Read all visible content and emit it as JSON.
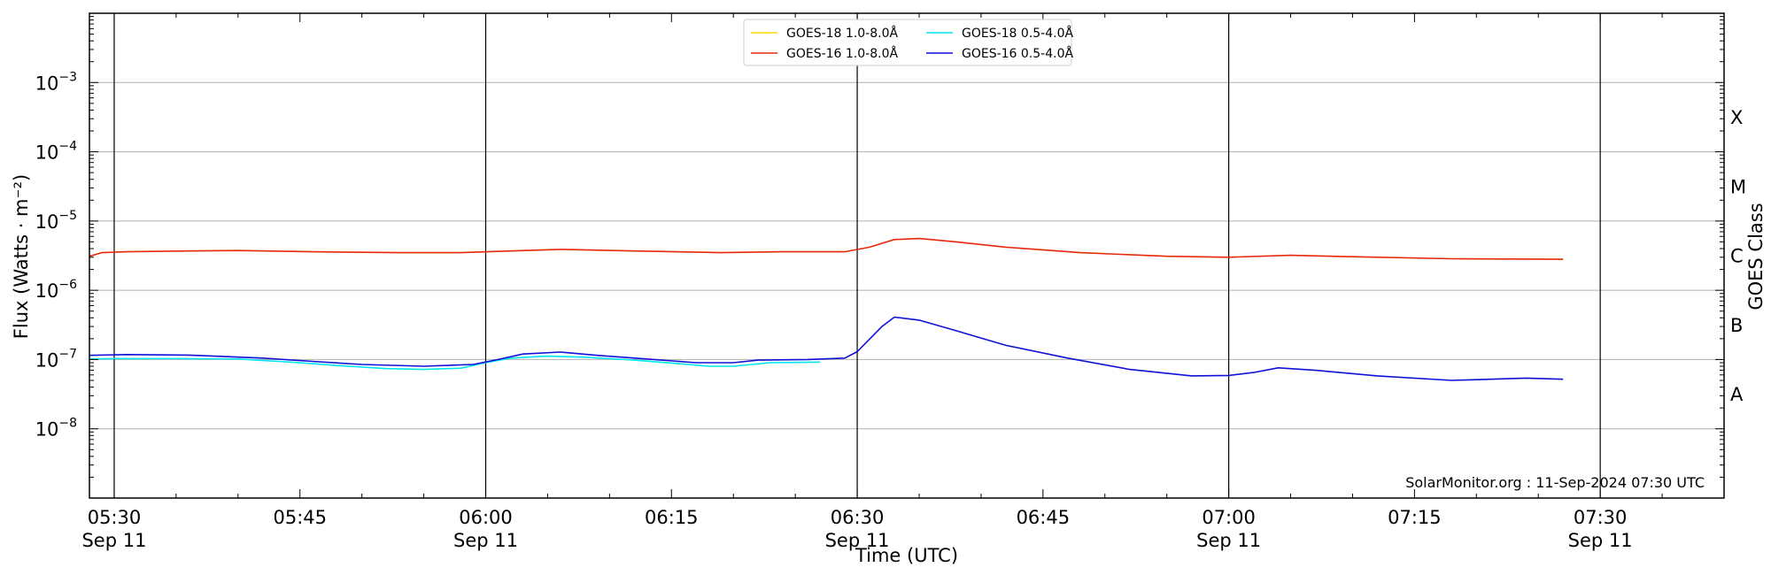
{
  "chart_data": {
    "type": "line",
    "xlabel": "Time (UTC)",
    "ylabel": "Flux (Watts · m⁻²)",
    "ylabel_right": "GOES Class",
    "y_scale": "log",
    "ylim": [
      1e-09,
      0.01
    ],
    "xlim": [
      "2024-09-11 05:28",
      "2024-09-11 07:40"
    ],
    "grid": "horizontal",
    "y_ticks": [
      {
        "exp": -8,
        "base": "10",
        "power": "−8"
      },
      {
        "exp": -7,
        "base": "10",
        "power": "−7"
      },
      {
        "exp": -6,
        "base": "10",
        "power": "−6"
      },
      {
        "exp": -5,
        "base": "10",
        "power": "−5"
      },
      {
        "exp": -4,
        "base": "10",
        "power": "−4"
      },
      {
        "exp": -3,
        "base": "10",
        "power": "−3"
      }
    ],
    "x_ticks": [
      {
        "time": "05:30",
        "label": "05:30",
        "date": "Sep 11"
      },
      {
        "time": "05:45",
        "label": "05:45",
        "date": ""
      },
      {
        "time": "06:00",
        "label": "06:00",
        "date": "Sep 11"
      },
      {
        "time": "06:15",
        "label": "06:15",
        "date": ""
      },
      {
        "time": "06:30",
        "label": "06:30",
        "date": "Sep 11"
      },
      {
        "time": "06:45",
        "label": "06:45",
        "date": ""
      },
      {
        "time": "07:00",
        "label": "07:00",
        "date": "Sep 11"
      },
      {
        "time": "07:15",
        "label": "07:15",
        "date": ""
      },
      {
        "time": "07:30",
        "label": "07:30",
        "date": "Sep 11"
      }
    ],
    "vertical_lines": [
      "05:30",
      "06:00",
      "06:30",
      "07:00",
      "07:30"
    ],
    "goes_classes": [
      {
        "label": "A",
        "flux": 3.2e-08
      },
      {
        "label": "B",
        "flux": 3.2e-07
      },
      {
        "label": "C",
        "flux": 3.2e-06
      },
      {
        "label": "M",
        "flux": 3.2e-05
      },
      {
        "label": "X",
        "flux": 0.00032
      }
    ],
    "legend_position": "top-center",
    "series": [
      {
        "name": "GOES-18 1.0-8.0Å",
        "color": "#ffd700",
        "points": []
      },
      {
        "name": "GOES-18 0.5-4.0Å",
        "color": "#00e5ee",
        "points": [
          [
            "05:28",
            1.02e-07
          ],
          [
            "05:30",
            1.03e-07
          ],
          [
            "05:35",
            1.03e-07
          ],
          [
            "05:40",
            1.02e-07
          ],
          [
            "05:45",
            9e-08
          ],
          [
            "05:48",
            8.2e-08
          ],
          [
            "05:52",
            7.4e-08
          ],
          [
            "05:55",
            7.2e-08
          ],
          [
            "05:58",
            7.5e-08
          ],
          [
            "06:00",
            9e-08
          ],
          [
            "06:02",
            1.05e-07
          ],
          [
            "06:05",
            1.12e-07
          ],
          [
            "06:08",
            1.08e-07
          ],
          [
            "06:12",
            9.8e-08
          ],
          [
            "06:16",
            8.6e-08
          ],
          [
            "06:18",
            8e-08
          ],
          [
            "06:20",
            8e-08
          ],
          [
            "06:23",
            9e-08
          ],
          [
            "06:27",
            9.2e-08
          ]
        ]
      },
      {
        "name": "GOES-16 1.0-8.0Å",
        "color": "#e8280c",
        "points": [
          [
            "05:28",
            3.1e-06
          ],
          [
            "05:29",
            3.5e-06
          ],
          [
            "05:31",
            3.6e-06
          ],
          [
            "05:36",
            3.7e-06
          ],
          [
            "05:40",
            3.75e-06
          ],
          [
            "05:46",
            3.6e-06
          ],
          [
            "05:53",
            3.5e-06
          ],
          [
            "05:58",
            3.5e-06
          ],
          [
            "06:02",
            3.7e-06
          ],
          [
            "06:06",
            3.9e-06
          ],
          [
            "06:12",
            3.7e-06
          ],
          [
            "06:19",
            3.5e-06
          ],
          [
            "06:24",
            3.6e-06
          ],
          [
            "06:29",
            3.6e-06
          ],
          [
            "06:31",
            4.2e-06
          ],
          [
            "06:33",
            5.4e-06
          ],
          [
            "06:35",
            5.6e-06
          ],
          [
            "06:38",
            5e-06
          ],
          [
            "06:42",
            4.2e-06
          ],
          [
            "06:48",
            3.5e-06
          ],
          [
            "06:55",
            3.1e-06
          ],
          [
            "07:00",
            3e-06
          ],
          [
            "07:05",
            3.2e-06
          ],
          [
            "07:10",
            3.05e-06
          ],
          [
            "07:18",
            2.85e-06
          ],
          [
            "07:27",
            2.8e-06
          ]
        ]
      },
      {
        "name": "GOES-16 0.5-4.0Å",
        "color": "#1010d8",
        "points": [
          [
            "05:28",
            1.15e-07
          ],
          [
            "05:31",
            1.18e-07
          ],
          [
            "05:36",
            1.16e-07
          ],
          [
            "05:42",
            1.05e-07
          ],
          [
            "05:46",
            9.4e-08
          ],
          [
            "05:50",
            8.5e-08
          ],
          [
            "05:55",
            8e-08
          ],
          [
            "05:59",
            8.5e-08
          ],
          [
            "06:01",
            1e-07
          ],
          [
            "06:03",
            1.2e-07
          ],
          [
            "06:06",
            1.28e-07
          ],
          [
            "06:09",
            1.15e-07
          ],
          [
            "06:13",
            1.02e-07
          ],
          [
            "06:17",
            9e-08
          ],
          [
            "06:20",
            9e-08
          ],
          [
            "06:22",
            9.8e-08
          ],
          [
            "06:26",
            1e-07
          ],
          [
            "06:29",
            1.05e-07
          ],
          [
            "06:30",
            1.3e-07
          ],
          [
            "06:32",
            3e-07
          ],
          [
            "06:33",
            4.1e-07
          ],
          [
            "06:35",
            3.7e-07
          ],
          [
            "06:38",
            2.6e-07
          ],
          [
            "06:42",
            1.6e-07
          ],
          [
            "06:47",
            1.05e-07
          ],
          [
            "06:52",
            7.2e-08
          ],
          [
            "06:57",
            5.8e-08
          ],
          [
            "07:00",
            5.9e-08
          ],
          [
            "07:02",
            6.5e-08
          ],
          [
            "07:04",
            7.6e-08
          ],
          [
            "07:07",
            7e-08
          ],
          [
            "07:12",
            5.8e-08
          ],
          [
            "07:18",
            5e-08
          ],
          [
            "07:24",
            5.4e-08
          ],
          [
            "07:27",
            5.2e-08
          ]
        ]
      }
    ],
    "legend_order": [
      0,
      2,
      1,
      3
    ],
    "credit": "SolarMonitor.org : 11-Sep-2024 07:30 UTC"
  }
}
